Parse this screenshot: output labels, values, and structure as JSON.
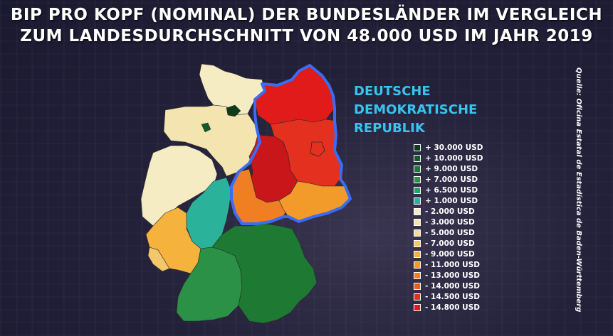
{
  "title": {
    "line1": "BIP PRO KOPF (NOMINAL) DER BUNDESLÄNDER IM VERGLEICH",
    "line2": "ZUM LANDESDURCHSCHNITT VON 48.000 USD IM JAHR 2019"
  },
  "ddr_label": {
    "line1": "DEUTSCHE",
    "line2": "DEMOKRATISCHE",
    "line3": "REPUBLIK"
  },
  "source": "Quelle: Oficina Estatal de Estadística de Baden-Württemberg",
  "colors": {
    "ddr_border": "#3a6cf4",
    "ddr_label": "#36c5f0"
  },
  "legend": [
    {
      "label": "+ 30.000 USD",
      "color": "#0f3d1c"
    },
    {
      "label": "+ 10.000 USD",
      "color": "#145c26"
    },
    {
      "label": "+ 9.000 USD",
      "color": "#1e7a32"
    },
    {
      "label": "+ 7.000 USD",
      "color": "#2a9147"
    },
    {
      "label": "+ 6.500 USD",
      "color": "#27a06a"
    },
    {
      "label": "+ 1.000 USD",
      "color": "#2ab39a"
    },
    {
      "label": "- 2.000 USD",
      "color": "#f5ecc4"
    },
    {
      "label": "- 3.000 USD",
      "color": "#f3e4b0"
    },
    {
      "label": "- 5.000 USD",
      "color": "#f1dc9c"
    },
    {
      "label": "- 7.000 USD",
      "color": "#f5c76c"
    },
    {
      "label": "- 9.000 USD",
      "color": "#f5b23c"
    },
    {
      "label": "- 11.000 USD",
      "color": "#f29a2a"
    },
    {
      "label": "- 13.000 USD",
      "color": "#ef7f22"
    },
    {
      "label": "- 14.000 USD",
      "color": "#ec5a22"
    },
    {
      "label": "- 14.500 USD",
      "color": "#e3301f"
    },
    {
      "label": "- 14.800 USD",
      "color": "#e11a1a"
    }
  ],
  "states": {
    "schleswig_holstein": "#f5ecc4",
    "hamburg": "#0f3d1c",
    "bremen": "#145c26",
    "niedersachsen": "#f3e4b0",
    "nordrhein_westfalen": "#f5ecc4",
    "hessen": "#2ab39a",
    "rheinland_pfalz": "#f5b23c",
    "saarland": "#f5c76c",
    "baden_wuerttemberg": "#2a9147",
    "bayern": "#1e7a32",
    "mecklenburg_vorpommern": "#e11a1a",
    "brandenburg": "#e3301f",
    "berlin": "#e3301f",
    "sachsen_anhalt": "#c8161b",
    "thueringen": "#ef7f22",
    "sachsen": "#f29a2a"
  }
}
